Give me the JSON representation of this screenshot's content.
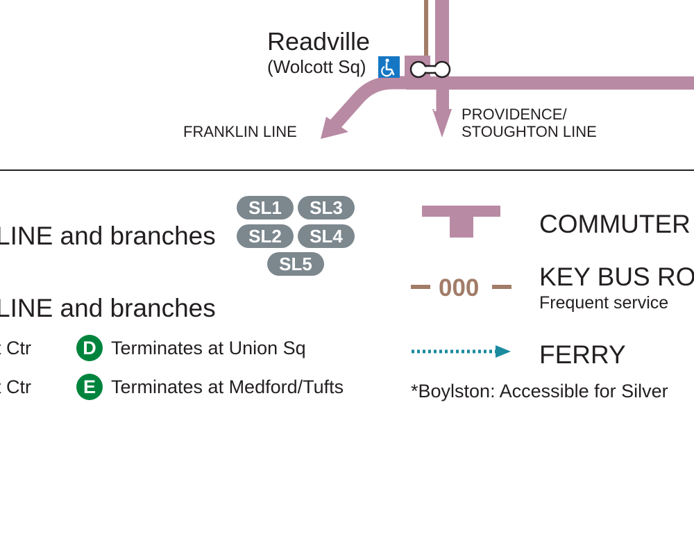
{
  "station": {
    "name": "Readville",
    "subtitle": "(Wolcott Sq)"
  },
  "lines": {
    "franklin": "FRANKLIN LINE",
    "providence_1": "PROVIDENCE/",
    "providence_2": "STOUGHTON LINE"
  },
  "legend": {
    "silver_line_label": "LINE and branches",
    "silver_badges": [
      "SL1",
      "SL3",
      "SL2",
      "SL4",
      "SL5"
    ],
    "green_line_label": "LINE and branches",
    "green_rows": [
      {
        "left": "t Ctr",
        "badge": "D",
        "text": "Terminates at Union Sq"
      },
      {
        "left": "t Ctr",
        "badge": "E",
        "text": "Terminates at Medford/Tufts"
      }
    ],
    "commuter_label": "COMMUTER",
    "key_bus_number": "000",
    "key_bus_label": "KEY BUS RO",
    "key_bus_sub": "Frequent service",
    "ferry_label": "FERRY",
    "footnote": "*Boylston: Accessible for Silver"
  },
  "colors": {
    "commuter_rail": "#b98aa4",
    "bus_route": "#a27c68",
    "ferry": "#1a8a9e",
    "silver": "#7c878e",
    "green": "#00843d",
    "accessibility": "#1577c4"
  },
  "icons": {
    "accessibility": "wheelchair-icon",
    "transfer": "station-connector-icon"
  }
}
